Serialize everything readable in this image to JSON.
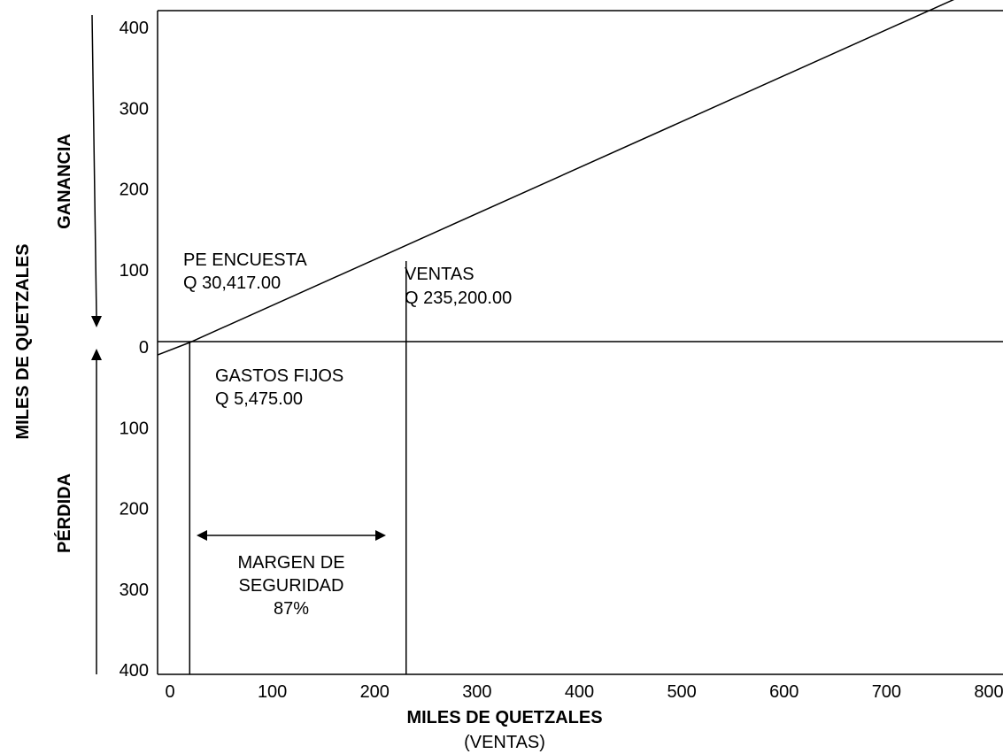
{
  "chart_data": {
    "type": "line",
    "title": "",
    "xlabel": "MILES DE QUETZALES",
    "xlabel_sub": "(VENTAS)",
    "ylabel": "MILES DE QUETZALES",
    "region_labels": {
      "top": "GANANCIA",
      "bottom": "PÉRDIDA"
    },
    "xlim": [
      0,
      800
    ],
    "ylim": [
      -400,
      400
    ],
    "x_ticks": [
      "0",
      "100",
      "200",
      "300",
      "400",
      "500",
      "600",
      "700",
      "800"
    ],
    "y_ticks": [
      "400",
      "300",
      "200",
      "100",
      "0",
      "100",
      "200",
      "300",
      "400"
    ],
    "series": [
      {
        "x": [
          0,
          30.4,
          800
        ],
        "y": [
          -15,
          0,
          440
        ]
      }
    ],
    "vertical_markers": [
      {
        "x": 30.4
      },
      {
        "x": 235.2
      }
    ],
    "annotations": [
      {
        "id": "pe",
        "lines": [
          "PE ENCUESTA",
          "Q 30,417.00"
        ]
      },
      {
        "id": "ventas",
        "lines": [
          "VENTAS",
          "Q 235,200.00"
        ]
      },
      {
        "id": "gastos",
        "lines": [
          "GASTOS FIJOS",
          "Q 5,475.00"
        ]
      },
      {
        "id": "margen",
        "lines": [
          "MARGEN DE",
          "SEGURIDAD",
          "87%"
        ]
      }
    ],
    "grid": false,
    "legend": "none"
  }
}
